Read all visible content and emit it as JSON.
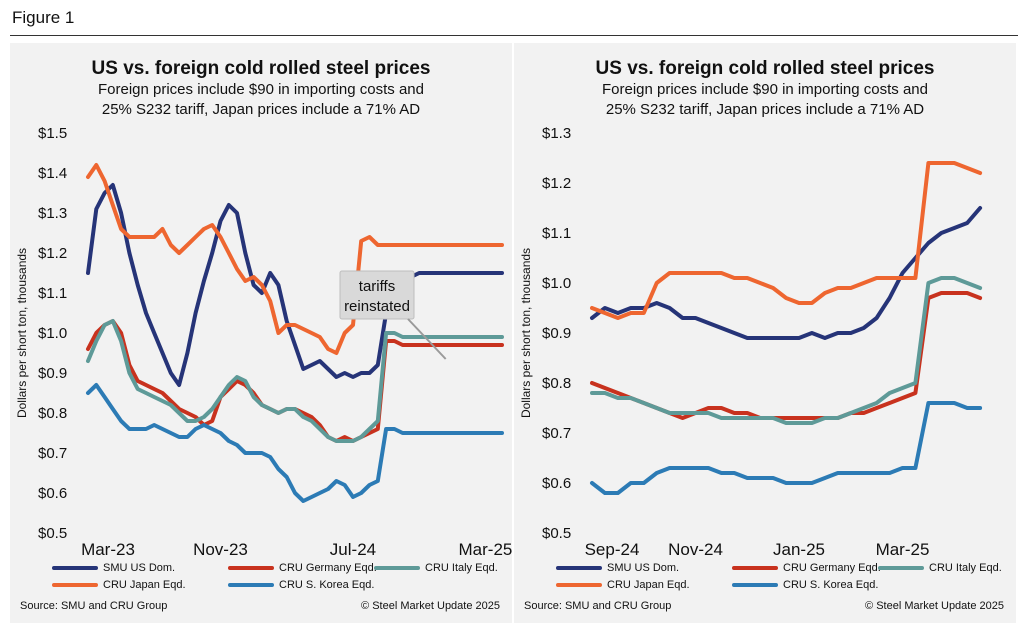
{
  "figure_label": "Figure 1",
  "colors": {
    "SMU US Dom.": "#263478",
    "CRU Germany Eqd.": "#c8321e",
    "CRU Italy Eqd.": "#5e9a98",
    "CRU Japan Eqd.": "#ee6630",
    "CRU S. Korea Eqd.": "#2c7bb5"
  },
  "chart_data": [
    {
      "type": "line",
      "title": "US vs. foreign cold rolled steel prices",
      "subtitle_line1": "Foreign prices include $90 in importing costs and",
      "subtitle_line2": "25% S232 tariff, Japan prices include a 71% AD",
      "ylabel": "Dollars per short ton, thousands",
      "xlabel": "",
      "ylim": [
        0.5,
        1.5
      ],
      "yticks": [
        "$0.5",
        "$0.6",
        "$0.7",
        "$0.8",
        "$0.9",
        "$1.0",
        "$1.1",
        "$1.2",
        "$1.3",
        "$1.4",
        "$1.5"
      ],
      "x_range": [
        0,
        25
      ],
      "xticks": [
        {
          "x": 0,
          "label": "Mar-23"
        },
        {
          "x": 8,
          "label": "Nov-23"
        },
        {
          "x": 16,
          "label": "Jul-24"
        },
        {
          "x": 24,
          "label": "Mar-25"
        }
      ],
      "annotation": {
        "line1": "tariffs",
        "line2": "reinstated",
        "x": 21.6,
        "y": 0.935
      },
      "series": [
        {
          "name": "SMU US Dom.",
          "x": [
            0,
            0.5,
            1,
            1.5,
            2,
            2.5,
            3,
            3.5,
            4,
            4.5,
            5,
            5.5,
            6,
            6.5,
            7,
            7.5,
            8,
            8.5,
            9,
            9.5,
            10,
            10.5,
            11,
            11.5,
            12,
            12.5,
            13,
            13.5,
            14,
            14.5,
            15,
            15.5,
            16,
            16.5,
            17,
            17.5,
            18,
            18.5,
            19,
            19.5,
            20,
            20.5,
            21,
            21.5,
            22,
            22.5,
            23,
            23.5,
            24,
            24.5,
            25
          ],
          "values": [
            1.15,
            1.31,
            1.35,
            1.37,
            1.3,
            1.2,
            1.12,
            1.05,
            1.0,
            0.95,
            0.9,
            0.87,
            0.95,
            1.05,
            1.13,
            1.2,
            1.28,
            1.32,
            1.3,
            1.2,
            1.12,
            1.1,
            1.15,
            1.12,
            1.03,
            0.97,
            0.91,
            0.92,
            0.93,
            0.91,
            0.89,
            0.9,
            0.89,
            0.9,
            0.9,
            0.92,
            1.05,
            1.1,
            1.12,
            1.14,
            1.15,
            1.15,
            1.15,
            1.15,
            1.15,
            1.15,
            1.15,
            1.15,
            1.15,
            1.15,
            1.15
          ]
        },
        {
          "name": "CRU Germany Eqd.",
          "x": [
            0,
            0.5,
            1,
            1.5,
            2,
            2.5,
            3,
            3.5,
            4,
            4.5,
            5,
            5.5,
            6,
            6.5,
            7,
            7.5,
            8,
            8.5,
            9,
            9.5,
            10,
            10.5,
            11,
            11.5,
            12,
            12.5,
            13,
            13.5,
            14,
            14.5,
            15,
            15.5,
            16,
            16.5,
            17,
            17.5,
            18,
            18.5,
            19,
            19.5,
            20,
            20.5,
            21,
            21.5,
            22,
            22.5,
            23,
            23.5,
            24,
            24.5,
            25
          ],
          "values": [
            0.96,
            1.0,
            1.02,
            1.03,
            1.0,
            0.92,
            0.88,
            0.87,
            0.86,
            0.85,
            0.83,
            0.81,
            0.8,
            0.79,
            0.77,
            0.78,
            0.84,
            0.86,
            0.88,
            0.87,
            0.85,
            0.82,
            0.81,
            0.8,
            0.81,
            0.81,
            0.8,
            0.79,
            0.77,
            0.74,
            0.73,
            0.74,
            0.73,
            0.74,
            0.75,
            0.76,
            0.98,
            0.98,
            0.97,
            0.97,
            0.97,
            0.97,
            0.97,
            0.97,
            0.97,
            0.97,
            0.97,
            0.97,
            0.97,
            0.97,
            0.97
          ]
        },
        {
          "name": "CRU Italy Eqd.",
          "x": [
            0,
            0.5,
            1,
            1.5,
            2,
            2.5,
            3,
            3.5,
            4,
            4.5,
            5,
            5.5,
            6,
            6.5,
            7,
            7.5,
            8,
            8.5,
            9,
            9.5,
            10,
            10.5,
            11,
            11.5,
            12,
            12.5,
            13,
            13.5,
            14,
            14.5,
            15,
            15.5,
            16,
            16.5,
            17,
            17.5,
            18,
            18.5,
            19,
            19.5,
            20,
            20.5,
            21,
            21.5,
            22,
            22.5,
            23,
            23.5,
            24,
            24.5,
            25
          ],
          "values": [
            0.93,
            0.98,
            1.02,
            1.03,
            0.98,
            0.9,
            0.86,
            0.85,
            0.84,
            0.83,
            0.82,
            0.8,
            0.78,
            0.78,
            0.79,
            0.81,
            0.84,
            0.87,
            0.89,
            0.88,
            0.84,
            0.82,
            0.81,
            0.8,
            0.81,
            0.81,
            0.79,
            0.78,
            0.76,
            0.74,
            0.73,
            0.73,
            0.73,
            0.74,
            0.76,
            0.78,
            1.0,
            1.0,
            0.99,
            0.99,
            0.99,
            0.99,
            0.99,
            0.99,
            0.99,
            0.99,
            0.99,
            0.99,
            0.99,
            0.99,
            0.99
          ]
        },
        {
          "name": "CRU Japan Eqd.",
          "x": [
            0,
            0.5,
            1,
            1.5,
            2,
            2.5,
            3,
            3.5,
            4,
            4.5,
            5,
            5.5,
            6,
            6.5,
            7,
            7.5,
            8,
            8.5,
            9,
            9.5,
            10,
            10.5,
            11,
            11.5,
            12,
            12.5,
            13,
            13.5,
            14,
            14.5,
            15,
            15.5,
            16,
            16.5,
            17,
            17.5,
            18,
            18.5,
            19,
            19.5,
            20,
            20.5,
            21,
            21.5,
            22,
            22.5,
            23,
            23.5,
            24,
            24.5,
            25
          ],
          "values": [
            1.39,
            1.42,
            1.38,
            1.32,
            1.26,
            1.24,
            1.24,
            1.24,
            1.24,
            1.26,
            1.22,
            1.2,
            1.22,
            1.24,
            1.26,
            1.27,
            1.24,
            1.2,
            1.16,
            1.13,
            1.14,
            1.12,
            1.08,
            1.0,
            1.02,
            1.02,
            1.01,
            1.0,
            0.99,
            0.96,
            0.95,
            1.0,
            1.02,
            1.23,
            1.24,
            1.22,
            1.22,
            1.22,
            1.22,
            1.22,
            1.22,
            1.22,
            1.22,
            1.22,
            1.22,
            1.22,
            1.22,
            1.22,
            1.22,
            1.22,
            1.22
          ]
        },
        {
          "name": "CRU S. Korea Eqd.",
          "x": [
            0,
            0.5,
            1,
            1.5,
            2,
            2.5,
            3,
            3.5,
            4,
            4.5,
            5,
            5.5,
            6,
            6.5,
            7,
            7.5,
            8,
            8.5,
            9,
            9.5,
            10,
            10.5,
            11,
            11.5,
            12,
            12.5,
            13,
            13.5,
            14,
            14.5,
            15,
            15.5,
            16,
            16.5,
            17,
            17.5,
            18,
            18.5,
            19,
            19.5,
            20,
            20.5,
            21,
            21.5,
            22,
            22.5,
            23,
            23.5,
            24,
            24.5,
            25
          ],
          "values": [
            0.85,
            0.87,
            0.84,
            0.81,
            0.78,
            0.76,
            0.76,
            0.76,
            0.77,
            0.76,
            0.75,
            0.74,
            0.74,
            0.76,
            0.77,
            0.76,
            0.75,
            0.73,
            0.72,
            0.7,
            0.7,
            0.7,
            0.69,
            0.66,
            0.64,
            0.6,
            0.58,
            0.59,
            0.6,
            0.61,
            0.63,
            0.62,
            0.59,
            0.6,
            0.62,
            0.63,
            0.76,
            0.76,
            0.75,
            0.75,
            0.75,
            0.75,
            0.75,
            0.75,
            0.75,
            0.75,
            0.75,
            0.75,
            0.75,
            0.75,
            0.75
          ]
        }
      ]
    },
    {
      "type": "line",
      "title": "US vs. foreign cold rolled steel prices",
      "subtitle_line1": "Foreign prices include $90 in importing costs and",
      "subtitle_line2": "25% S232 tariff, Japan prices include a 71% AD",
      "ylabel": "Dollars per short ton, thousands",
      "xlabel": "",
      "ylim": [
        0.5,
        1.3
      ],
      "yticks": [
        "$0.5",
        "$0.6",
        "$0.7",
        "$0.8",
        "$0.9",
        "$1.0",
        "$1.1",
        "$1.2",
        "$1.3"
      ],
      "x_range": [
        0,
        8
      ],
      "xticks": [
        {
          "x": 0,
          "label": "Sep-24"
        },
        {
          "x": 2,
          "label": "Nov-24"
        },
        {
          "x": 4,
          "label": "Jan-25"
        },
        {
          "x": 6,
          "label": "Mar-25"
        }
      ],
      "series": [
        {
          "name": "SMU US Dom.",
          "x": [
            0,
            0.25,
            0.5,
            0.75,
            1,
            1.25,
            1.5,
            1.75,
            2,
            2.25,
            2.5,
            2.75,
            3,
            3.25,
            3.5,
            3.75,
            4,
            4.25,
            4.5,
            4.75,
            5,
            5.25,
            5.5,
            5.75,
            6,
            6.25,
            6.5,
            6.75,
            7,
            7.25,
            7.5
          ],
          "values": [
            0.93,
            0.95,
            0.94,
            0.95,
            0.95,
            0.96,
            0.95,
            0.93,
            0.93,
            0.92,
            0.91,
            0.9,
            0.89,
            0.89,
            0.89,
            0.89,
            0.89,
            0.9,
            0.89,
            0.9,
            0.9,
            0.91,
            0.93,
            0.97,
            1.02,
            1.05,
            1.08,
            1.1,
            1.11,
            1.12,
            1.15
          ]
        },
        {
          "name": "CRU Germany Eqd.",
          "x": [
            0,
            0.25,
            0.5,
            0.75,
            1,
            1.25,
            1.5,
            1.75,
            2,
            2.25,
            2.5,
            2.75,
            3,
            3.25,
            3.5,
            3.75,
            4,
            4.25,
            4.5,
            4.75,
            5,
            5.25,
            5.5,
            5.75,
            6,
            6.25,
            6.5,
            6.75,
            7,
            7.25,
            7.5
          ],
          "values": [
            0.8,
            0.79,
            0.78,
            0.77,
            0.76,
            0.75,
            0.74,
            0.73,
            0.74,
            0.75,
            0.75,
            0.74,
            0.74,
            0.73,
            0.73,
            0.73,
            0.73,
            0.73,
            0.73,
            0.73,
            0.74,
            0.74,
            0.75,
            0.76,
            0.77,
            0.78,
            0.97,
            0.98,
            0.98,
            0.98,
            0.97
          ]
        },
        {
          "name": "CRU Italy Eqd.",
          "x": [
            0,
            0.25,
            0.5,
            0.75,
            1,
            1.25,
            1.5,
            1.75,
            2,
            2.25,
            2.5,
            2.75,
            3,
            3.25,
            3.5,
            3.75,
            4,
            4.25,
            4.5,
            4.75,
            5,
            5.25,
            5.5,
            5.75,
            6,
            6.25,
            6.5,
            6.75,
            7,
            7.25,
            7.5
          ],
          "values": [
            0.78,
            0.78,
            0.77,
            0.77,
            0.76,
            0.75,
            0.74,
            0.74,
            0.74,
            0.74,
            0.73,
            0.73,
            0.73,
            0.73,
            0.73,
            0.72,
            0.72,
            0.72,
            0.73,
            0.73,
            0.74,
            0.75,
            0.76,
            0.78,
            0.79,
            0.8,
            1.0,
            1.01,
            1.01,
            1.0,
            0.99
          ]
        },
        {
          "name": "CRU Japan Eqd.",
          "x": [
            0,
            0.25,
            0.5,
            0.75,
            1,
            1.25,
            1.5,
            1.75,
            2,
            2.25,
            2.5,
            2.75,
            3,
            3.25,
            3.5,
            3.75,
            4,
            4.25,
            4.5,
            4.75,
            5,
            5.25,
            5.5,
            5.75,
            6,
            6.25,
            6.5,
            6.75,
            7,
            7.25,
            7.5
          ],
          "values": [
            0.95,
            0.94,
            0.93,
            0.94,
            0.94,
            1.0,
            1.02,
            1.02,
            1.02,
            1.02,
            1.02,
            1.01,
            1.01,
            1.0,
            0.99,
            0.97,
            0.96,
            0.96,
            0.98,
            0.99,
            0.99,
            1.0,
            1.01,
            1.01,
            1.01,
            1.01,
            1.24,
            1.24,
            1.24,
            1.23,
            1.22
          ]
        },
        {
          "name": "CRU S. Korea Eqd.",
          "x": [
            0,
            0.25,
            0.5,
            0.75,
            1,
            1.25,
            1.5,
            1.75,
            2,
            2.25,
            2.5,
            2.75,
            3,
            3.25,
            3.5,
            3.75,
            4,
            4.25,
            4.5,
            4.75,
            5,
            5.25,
            5.5,
            5.75,
            6,
            6.25,
            6.5,
            6.75,
            7,
            7.25,
            7.5
          ],
          "values": [
            0.6,
            0.58,
            0.58,
            0.6,
            0.6,
            0.62,
            0.63,
            0.63,
            0.63,
            0.63,
            0.62,
            0.62,
            0.61,
            0.61,
            0.61,
            0.6,
            0.6,
            0.6,
            0.61,
            0.62,
            0.62,
            0.62,
            0.62,
            0.62,
            0.63,
            0.63,
            0.76,
            0.76,
            0.76,
            0.75,
            0.75
          ]
        }
      ]
    }
  ],
  "legend": [
    {
      "label": "SMU US Dom.",
      "color": "#263478"
    },
    {
      "label": "CRU Germany Eqd.",
      "color": "#c8321e"
    },
    {
      "label": "CRU Italy Eqd.",
      "color": "#5e9a98"
    },
    {
      "label": "CRU Japan Eqd.",
      "color": "#ee6630"
    },
    {
      "label": "CRU S. Korea Eqd.",
      "color": "#2c7bb5"
    }
  ],
  "source": "Source: SMU and CRU Group",
  "copyright": "© Steel Market Update 2025"
}
